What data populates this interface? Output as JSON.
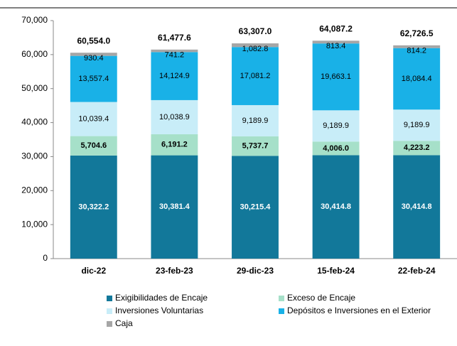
{
  "chart_data": {
    "type": "stacked_bar",
    "categories": [
      "dic-22",
      "23-feb-23",
      "29-dic-23",
      "15-feb-24",
      "22-feb-24"
    ],
    "series": [
      {
        "name": "Exigibilidades de Encaje",
        "color": "#12789a",
        "values": [
          30322.2,
          30381.4,
          30215.4,
          30414.8,
          30414.8
        ],
        "value_labels": [
          "30,322.2",
          "30,381.4",
          "30,215.4",
          "30,414.8",
          "30,414.8"
        ]
      },
      {
        "name": "Exceso de Encaje",
        "color": "#a6e0c9",
        "values": [
          5704.6,
          6191.2,
          5737.7,
          4006.0,
          4223.2
        ],
        "value_labels": [
          "5,704.6",
          "6,191.2",
          "5,737.7",
          "4,006.0",
          "4,223.2"
        ]
      },
      {
        "name": "Inversiones Voluntarias",
        "color": "#c8edf8",
        "values": [
          10039.4,
          10038.9,
          9189.9,
          9189.9,
          9189.9
        ],
        "value_labels": [
          "10,039.4",
          "10,038.9",
          "9,189.9",
          "9,189.9",
          "9,189.9"
        ]
      },
      {
        "name": "Depósitos e Inversiones en el Exterior",
        "color": "#19b1e7",
        "values": [
          13557.4,
          14124.9,
          17081.2,
          19663.1,
          18084.4
        ],
        "value_labels": [
          "13,557.4",
          "14,124.9",
          "17,081.2",
          "19,663.1",
          "18,084.4"
        ]
      },
      {
        "name": "Caja",
        "color": "#a6a6a6",
        "values": [
          930.4,
          741.2,
          1082.8,
          813.4,
          814.2
        ],
        "value_labels": [
          "930.4",
          "741.2",
          "1,082.8",
          "813.4",
          "814.2"
        ]
      }
    ],
    "totals": [
      60554.0,
      61477.6,
      63307.0,
      64087.2,
      62726.5
    ],
    "total_labels": [
      "60,554.0",
      "61,477.6",
      "63,307.0",
      "64,087.2",
      "62,726.5"
    ],
    "ylim": [
      0,
      70000
    ],
    "yticks": [
      0,
      {
        "value": 10000,
        "label": "10,000"
      },
      {
        "value": 20000,
        "label": "20,000"
      },
      {
        "value": 30000,
        "label": "30,000"
      },
      {
        "value": 40000,
        "label": "40,000"
      },
      {
        "value": 50000,
        "label": "50,000"
      },
      {
        "value": 60000,
        "label": "60,000"
      },
      {
        "value": 70000,
        "label": "70,000"
      }
    ],
    "grid": false,
    "legend": "bottom"
  }
}
